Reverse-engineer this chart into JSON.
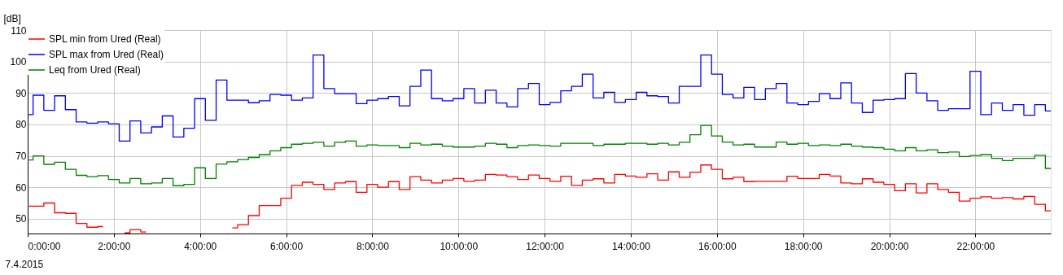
{
  "chart_data": {
    "type": "step",
    "ylabel": "[dB]",
    "xlabel": "7.4.2015",
    "x": [
      0,
      0.25,
      0.5,
      0.75,
      1,
      1.25,
      1.5,
      1.75,
      2,
      2.25,
      2.5,
      2.75,
      3,
      3.25,
      3.5,
      3.75,
      4,
      4.25,
      4.5,
      4.75,
      5,
      5.25,
      5.5,
      5.75,
      6,
      6.25,
      6.5,
      6.75,
      7,
      7.25,
      7.5,
      7.75,
      8,
      8.25,
      8.5,
      8.75,
      9,
      9.25,
      9.5,
      9.75,
      10,
      10.25,
      10.5,
      10.75,
      11,
      11.25,
      11.5,
      11.75,
      12,
      12.25,
      12.5,
      12.75,
      13,
      13.25,
      13.5,
      13.75,
      14,
      14.25,
      14.5,
      14.75,
      15,
      15.25,
      15.5,
      15.75,
      16,
      16.25,
      16.5,
      16.75,
      17,
      17.25,
      17.5,
      17.75,
      18,
      18.25,
      18.5,
      18.75,
      19,
      19.25,
      19.5,
      19.75,
      20,
      20.25,
      20.5,
      20.75,
      21,
      21.25,
      21.5,
      21.75,
      22,
      22.25,
      22.5,
      22.75,
      23,
      23.25,
      23.5,
      23.75
    ],
    "series": [
      {
        "name": "SPL min from Ured (Real)",
        "color": "#ff0000",
        "values": [
          54.0,
          54.0,
          55.0,
          51.9,
          51.7,
          48.5,
          47.3,
          47.5,
          null,
          45.5,
          46.5,
          45.8,
          null,
          null,
          null,
          null,
          null,
          null,
          null,
          47.1,
          48.1,
          51.0,
          54.2,
          54.2,
          56.5,
          60.6,
          61.6,
          60.9,
          59.3,
          61.4,
          61.8,
          58.4,
          60.9,
          60.0,
          61.8,
          59.3,
          63.4,
          62.3,
          61.4,
          62.3,
          62.8,
          61.9,
          62.3,
          64.1,
          63.9,
          63.4,
          62.5,
          63.9,
          62.8,
          61.9,
          63.5,
          60.6,
          62.3,
          62.7,
          61.4,
          64.1,
          63.6,
          63.2,
          64.3,
          62.3,
          64.9,
          63.2,
          64.8,
          67.1,
          65.7,
          62.7,
          63.2,
          61.8,
          61.9,
          61.9,
          61.9,
          63.5,
          62.8,
          62.8,
          64.1,
          63.6,
          61.4,
          61.1,
          62.7,
          61.6,
          60.9,
          58.9,
          61.1,
          58.2,
          61.1,
          59.3,
          58.4,
          55.6,
          56.5,
          57.0,
          56.5,
          56.7,
          56.3,
          57.1,
          54.6,
          52.5
        ]
      },
      {
        "name": "SPL max from Ured (Real)",
        "color": "#0000ff",
        "values": [
          83.1,
          89.3,
          84.5,
          89.1,
          84.7,
          80.8,
          80.4,
          80.8,
          80.2,
          74.7,
          81.1,
          77.3,
          79.2,
          82.7,
          76.0,
          78.8,
          88.2,
          81.3,
          94.1,
          87.7,
          87.7,
          86.9,
          87.5,
          89.5,
          89.3,
          87.7,
          88.4,
          102.1,
          91.4,
          89.8,
          89.8,
          86.6,
          87.7,
          88.2,
          88.9,
          85.9,
          92.1,
          97.3,
          88.2,
          87.5,
          88.2,
          91.4,
          86.8,
          90.9,
          86.8,
          85.6,
          91.4,
          93.0,
          86.3,
          87.0,
          90.7,
          92.1,
          96.0,
          88.4,
          90.2,
          87.0,
          87.9,
          90.2,
          89.1,
          88.9,
          86.8,
          92.1,
          92.1,
          102.1,
          96.0,
          89.5,
          88.4,
          91.8,
          87.9,
          91.4,
          93.0,
          86.8,
          86.3,
          87.3,
          89.8,
          88.2,
          93.2,
          86.8,
          83.8,
          87.7,
          87.9,
          88.2,
          96.2,
          90.0,
          87.5,
          84.5,
          85.0,
          85.0,
          96.9,
          83.1,
          86.8,
          84.5,
          86.3,
          82.9,
          86.3,
          84.3
        ]
      },
      {
        "name": "Leq from Ured (Real)",
        "color": "#008000",
        "values": [
          68.7,
          70.0,
          67.3,
          68.0,
          65.7,
          63.8,
          63.4,
          63.7,
          62.5,
          61.4,
          62.8,
          61.1,
          61.4,
          62.8,
          60.5,
          60.9,
          66.2,
          62.8,
          67.4,
          68.1,
          68.8,
          69.5,
          70.4,
          71.6,
          72.6,
          73.7,
          74.0,
          74.3,
          73.1,
          74.3,
          74.7,
          73.1,
          73.5,
          73.3,
          73.3,
          72.6,
          74.0,
          73.5,
          73.7,
          73.1,
          72.8,
          72.8,
          73.1,
          74.0,
          73.7,
          72.6,
          73.3,
          73.5,
          73.3,
          73.1,
          74.0,
          74.0,
          74.0,
          73.3,
          73.7,
          73.7,
          74.0,
          74.0,
          73.7,
          74.0,
          73.5,
          74.3,
          76.7,
          79.7,
          76.3,
          74.4,
          73.5,
          73.7,
          72.8,
          72.8,
          74.4,
          73.7,
          74.0,
          73.3,
          73.5,
          73.3,
          73.7,
          73.1,
          72.8,
          72.6,
          72.1,
          71.6,
          72.6,
          71.6,
          71.9,
          71.0,
          71.2,
          69.8,
          70.1,
          70.4,
          69.2,
          68.5,
          69.2,
          69.2,
          70.2,
          66.0
        ]
      }
    ],
    "xlim": [
      0,
      23.75
    ],
    "ylim": [
      45.3,
      110
    ],
    "xticks": [
      {
        "value": 0,
        "label": "0:00:00"
      },
      {
        "value": 2,
        "label": "2:00:00"
      },
      {
        "value": 4,
        "label": "4:00:00"
      },
      {
        "value": 6,
        "label": "6:00:00"
      },
      {
        "value": 8,
        "label": "8:00:00"
      },
      {
        "value": 10,
        "label": "10:00:00"
      },
      {
        "value": 12,
        "label": "12:00:00"
      },
      {
        "value": 14,
        "label": "14:00:00"
      },
      {
        "value": 16,
        "label": "16:00:00"
      },
      {
        "value": 18,
        "label": "18:00:00"
      },
      {
        "value": 20,
        "label": "20:00:00"
      },
      {
        "value": 22,
        "label": "22:00:00"
      }
    ],
    "yticks": [
      50,
      60,
      70,
      80,
      90,
      100,
      110
    ],
    "grid": true,
    "legend": "top left",
    "line_style": "solid"
  }
}
